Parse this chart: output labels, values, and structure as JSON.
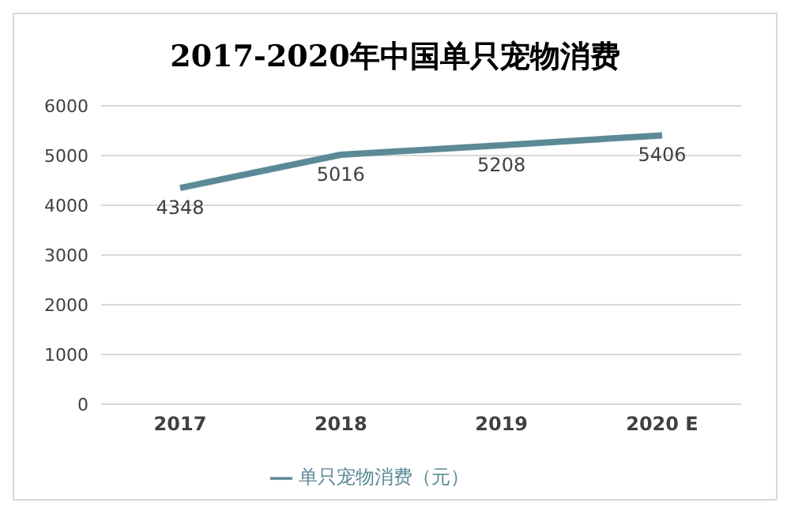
{
  "chart_data": {
    "type": "line",
    "title": "2017-2020年中国单只宠物消费",
    "categories": [
      "2017",
      "2018",
      "2019",
      "2020 E"
    ],
    "series": [
      {
        "name": "单只宠物消费（元）",
        "color": "#5b8a96",
        "values": [
          4348,
          5016,
          5208,
          5406
        ]
      }
    ],
    "ylim": [
      0,
      6000
    ],
    "yticks": [
      0,
      1000,
      2000,
      3000,
      4000,
      5000,
      6000
    ],
    "grid": "y",
    "legend": "bottom",
    "data_labels": true,
    "marker": "none",
    "line_style": "solid"
  }
}
